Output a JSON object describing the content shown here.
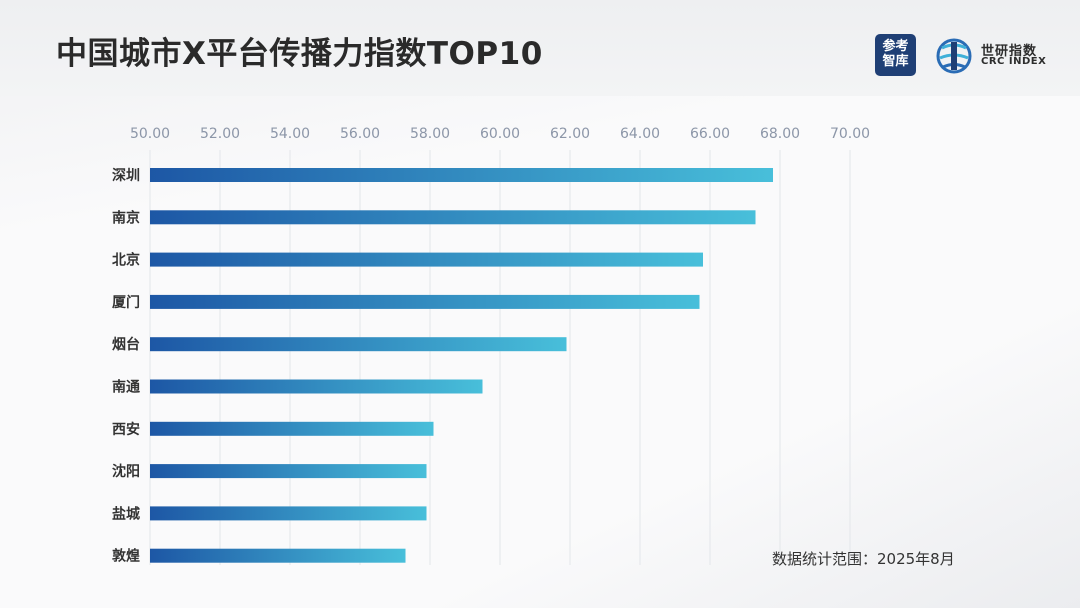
{
  "header": {
    "title": "中国城市X平台传播力指数TOP10",
    "logo_cankao_line1": "参考",
    "logo_cankao_line2": "智库",
    "logo_crc_cn": "世研指数",
    "logo_crc_en": "CRC INDEX"
  },
  "footnote": "数据统计范围：2025年8月",
  "colors": {
    "bar_start": "#1d57a5",
    "bar_end": "#48bfda",
    "grid": "#e3e6ea",
    "tick_text": "#8c96a8",
    "label_text": "#333333"
  },
  "chart_data": {
    "type": "bar",
    "orientation": "horizontal",
    "categories": [
      "深圳",
      "南京",
      "北京",
      "厦门",
      "烟台",
      "南通",
      "西安",
      "沈阳",
      "盐城",
      "敦煌"
    ],
    "values": [
      67.8,
      67.3,
      65.8,
      65.7,
      61.9,
      59.5,
      58.1,
      57.9,
      57.9,
      57.3
    ],
    "xlim": [
      50,
      70
    ],
    "ticks": [
      "50.00",
      "52.00",
      "54.00",
      "56.00",
      "58.00",
      "60.00",
      "62.00",
      "64.00",
      "66.00",
      "68.00",
      "70.00"
    ],
    "tick_values": [
      50,
      52,
      54,
      56,
      58,
      60,
      62,
      64,
      66,
      68,
      70
    ],
    "grid": true,
    "axis_position": "top",
    "legend": "none"
  }
}
